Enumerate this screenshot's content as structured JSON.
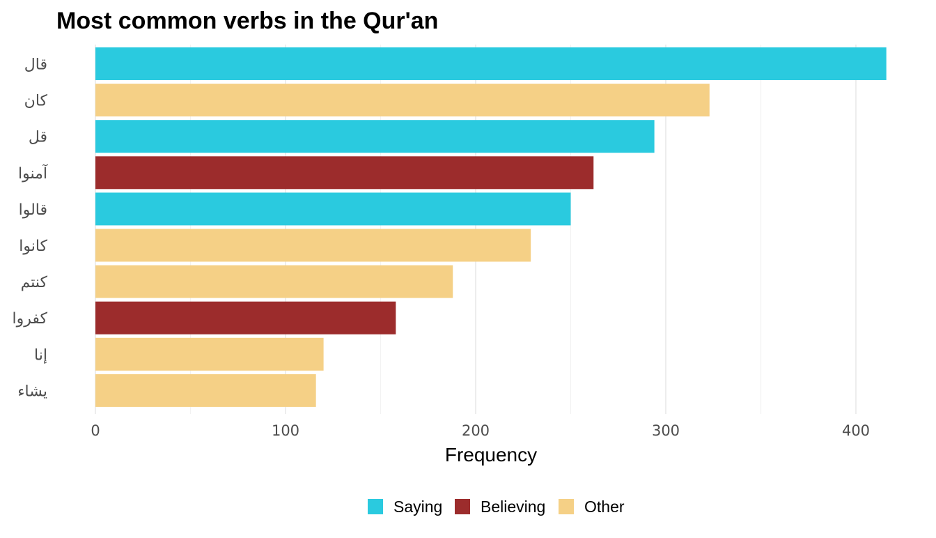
{
  "chart_data": {
    "type": "bar",
    "orientation": "horizontal",
    "title": "Most common verbs in the Qur'an",
    "xlabel": "Frequency",
    "ylabel": "",
    "xlim": [
      0,
      420
    ],
    "x_ticks": [
      0,
      100,
      200,
      300,
      400
    ],
    "grid": true,
    "legend_position": "bottom",
    "categories": [
      "قال",
      "كان",
      "قل",
      "آمنوا",
      "قالوا",
      "كانوا",
      "كنتم",
      "كفروا",
      "إنا",
      "يشاء"
    ],
    "values": [
      416,
      323,
      294,
      262,
      250,
      229,
      188,
      158,
      120,
      116
    ],
    "groups": [
      "Saying",
      "Other",
      "Saying",
      "Believing",
      "Saying",
      "Other",
      "Other",
      "Believing",
      "Other",
      "Other"
    ],
    "legend": [
      {
        "name": "Saying",
        "color": "#2ACADF"
      },
      {
        "name": "Believing",
        "color": "#9C2C2C"
      },
      {
        "name": "Other",
        "color": "#F5D086"
      }
    ]
  }
}
